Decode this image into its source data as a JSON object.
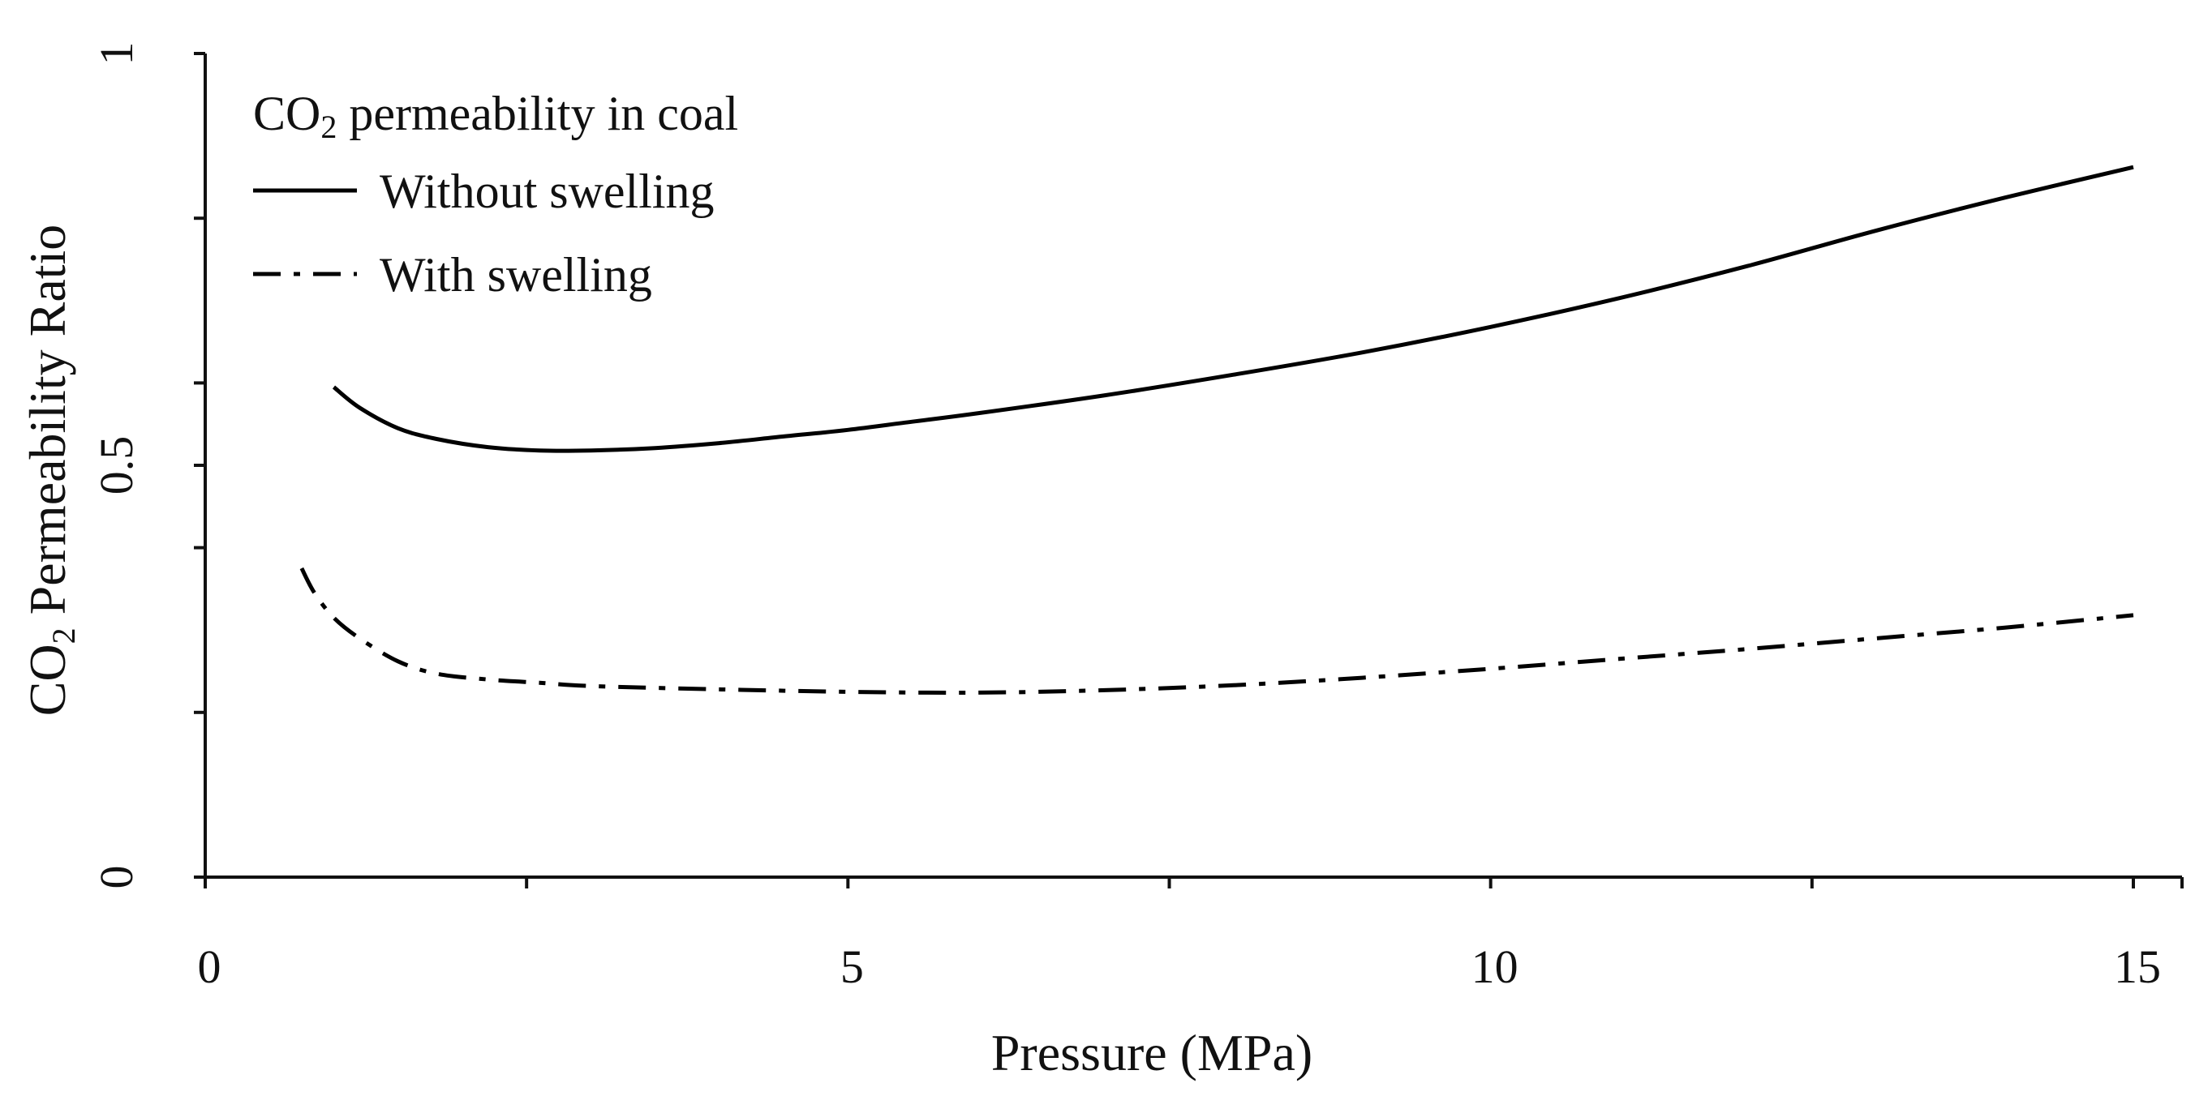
{
  "chart_data": {
    "type": "line",
    "title": "",
    "xlabel": "Pressure (MPa)",
    "ylabel": {
      "prefix": "CO",
      "subscript": "2",
      "suffix": " Permeability Ratio"
    },
    "xlim": [
      0,
      15
    ],
    "ylim": [
      0,
      1
    ],
    "x_ticks": [
      0,
      5,
      10,
      15
    ],
    "x_tick_labels": [
      "0",
      "5",
      "10",
      "15"
    ],
    "x_minor_ticks": [
      2.5,
      7.5,
      12.5
    ],
    "y_ticks": [
      0,
      0.5,
      1
    ],
    "y_tick_labels": [
      "0",
      "0.5",
      "1"
    ],
    "y_minor_ticks": [
      0.2,
      0.4,
      0.6,
      0.8
    ],
    "grid": false,
    "legend": {
      "title_prefix": "CO",
      "title_subscript": "2",
      "title_suffix": " permeability in coal",
      "placement": "top-left"
    },
    "series": [
      {
        "name": "Without swelling",
        "style": "solid",
        "color": "#000000",
        "points": [
          [
            1.0,
            0.595
          ],
          [
            1.2,
            0.57
          ],
          [
            1.5,
            0.545
          ],
          [
            1.8,
            0.532
          ],
          [
            2.2,
            0.522
          ],
          [
            2.6,
            0.518
          ],
          [
            3.0,
            0.518
          ],
          [
            3.5,
            0.521
          ],
          [
            4.0,
            0.527
          ],
          [
            4.5,
            0.535
          ],
          [
            5.0,
            0.543
          ],
          [
            5.5,
            0.553
          ],
          [
            6.0,
            0.563
          ],
          [
            7.0,
            0.585
          ],
          [
            8.0,
            0.61
          ],
          [
            9.0,
            0.637
          ],
          [
            10.0,
            0.668
          ],
          [
            11.0,
            0.703
          ],
          [
            12.0,
            0.742
          ],
          [
            13.0,
            0.785
          ],
          [
            14.0,
            0.825
          ],
          [
            15.0,
            0.862
          ]
        ]
      },
      {
        "name": "With swelling",
        "style": "dash-dot",
        "color": "#000000",
        "points": [
          [
            0.75,
            0.375
          ],
          [
            0.85,
            0.345
          ],
          [
            1.0,
            0.315
          ],
          [
            1.2,
            0.29
          ],
          [
            1.5,
            0.262
          ],
          [
            1.8,
            0.247
          ],
          [
            2.2,
            0.24
          ],
          [
            2.6,
            0.236
          ],
          [
            3.0,
            0.232
          ],
          [
            4.0,
            0.228
          ],
          [
            5.0,
            0.225
          ],
          [
            6.0,
            0.224
          ],
          [
            7.0,
            0.227
          ],
          [
            8.0,
            0.233
          ],
          [
            9.0,
            0.242
          ],
          [
            10.0,
            0.253
          ],
          [
            11.0,
            0.265
          ],
          [
            12.0,
            0.277
          ],
          [
            13.0,
            0.29
          ],
          [
            14.0,
            0.303
          ],
          [
            15.0,
            0.318
          ]
        ]
      }
    ]
  }
}
